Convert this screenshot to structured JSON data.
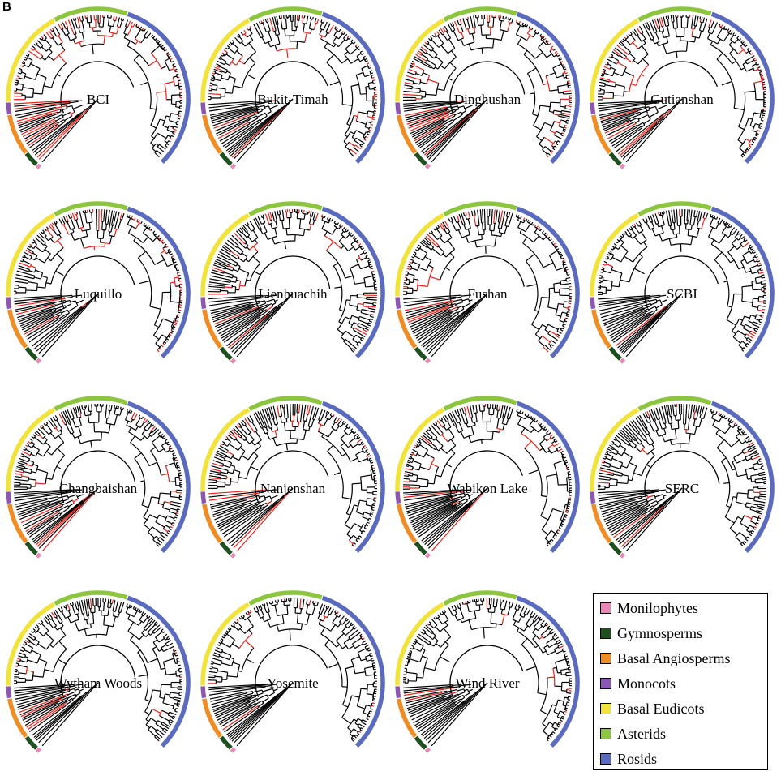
{
  "panel_letter": "B",
  "clades": [
    {
      "name": "Monilophytes",
      "color": "#e887b8"
    },
    {
      "name": "Gymnosperms",
      "color": "#1f4f1f"
    },
    {
      "name": "Basal Angiosperms",
      "color": "#f08c24"
    },
    {
      "name": "Monocots",
      "color": "#8a57b3"
    },
    {
      "name": "Basal Eudicots",
      "color": "#f2e33a"
    },
    {
      "name": "Asterids",
      "color": "#8cc63f"
    },
    {
      "name": "Rosids",
      "color": "#5a6bbf"
    }
  ],
  "branch_colors": {
    "default": "#000000",
    "highlight": "#e8231c"
  },
  "trees": [
    {
      "label": "BCI"
    },
    {
      "label": "Bukit-Timah"
    },
    {
      "label": "Dinghushan"
    },
    {
      "label": "Gutianshan"
    },
    {
      "label": "Luquillo"
    },
    {
      "label": "Lienhuachih"
    },
    {
      "label": "Fushan"
    },
    {
      "label": "SCBI"
    },
    {
      "label": "Changbaishan"
    },
    {
      "label": "Nanjenshan"
    },
    {
      "label": "Wabikon Lake"
    },
    {
      "label": "SERC"
    },
    {
      "label": "Wytham Woods"
    },
    {
      "label": "Yosemite"
    },
    {
      "label": "Wind River"
    }
  ]
}
